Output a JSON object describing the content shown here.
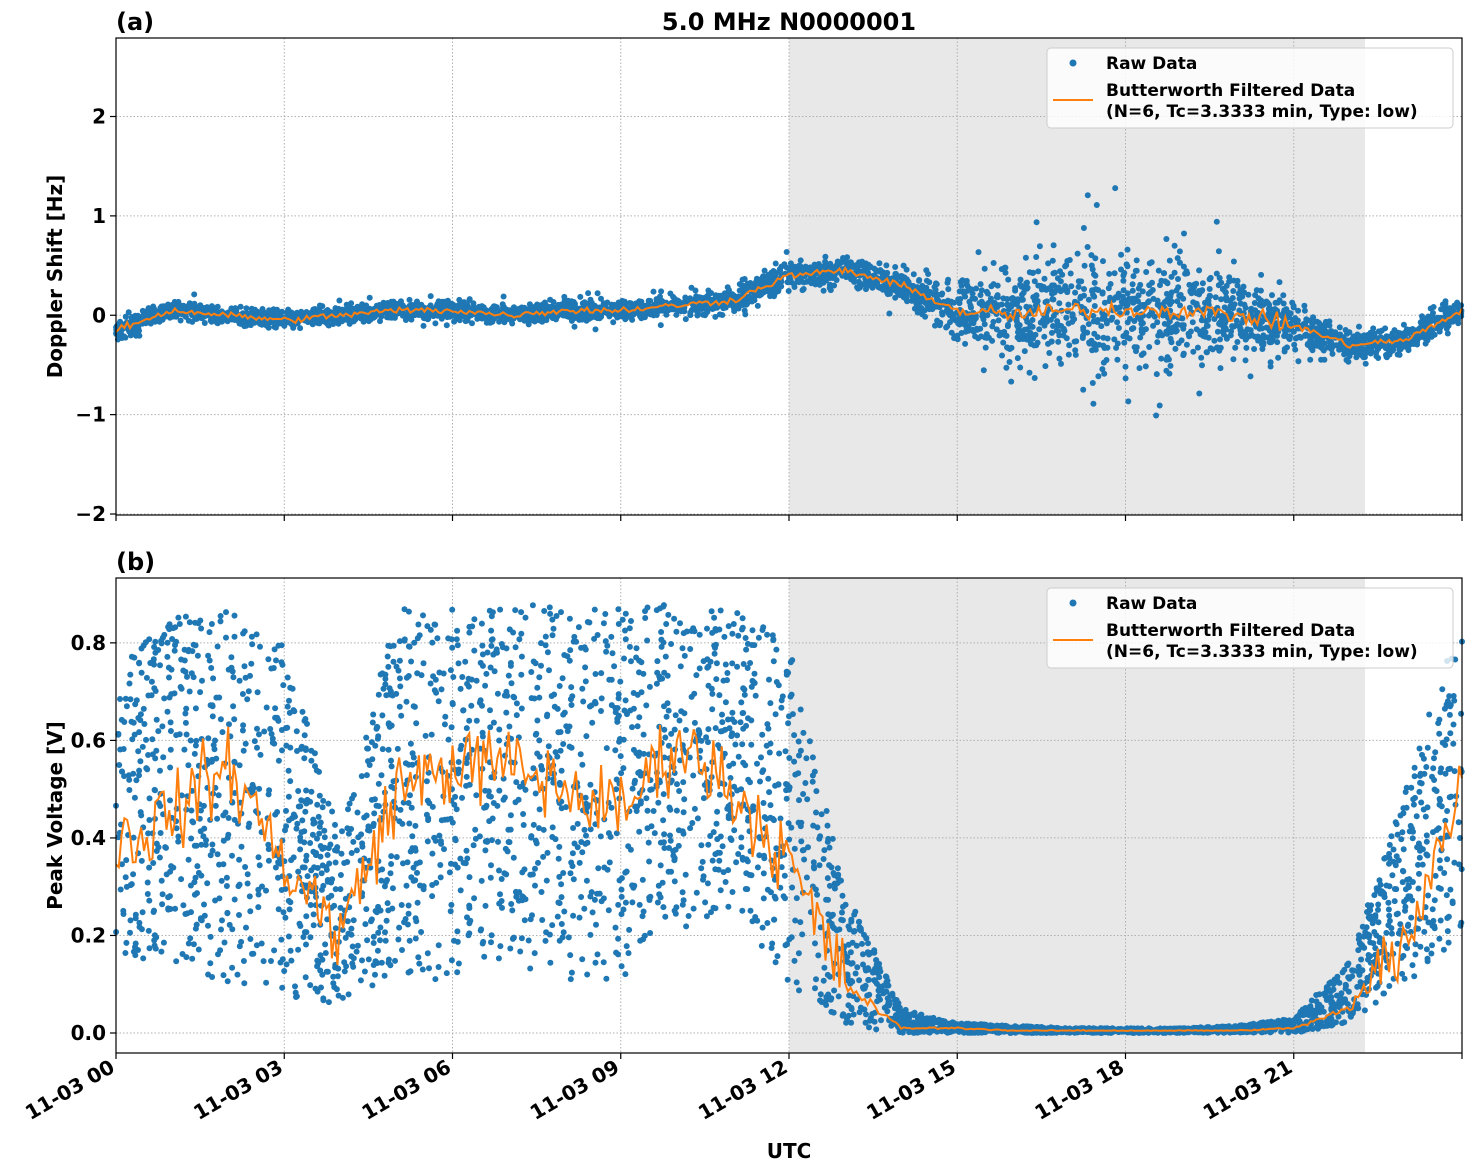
{
  "chart_data": [
    {
      "type": "scatter",
      "panel_label": "(a)",
      "title": "5.0 MHz N0000001",
      "xlabel": "",
      "ylabel": "Doppler Shift [Hz]",
      "xlim_hours": [
        0,
        24
      ],
      "ylim": [
        -2.01,
        2.79
      ],
      "yticks": [
        -2,
        -1,
        0,
        1,
        2
      ],
      "ytick_labels": [
        "−2",
        "−1",
        "0",
        "1",
        "2"
      ],
      "grid": true,
      "legend_position": "top-right",
      "shaded_region_hours": [
        12,
        22.27
      ],
      "x_hours": [
        0,
        1,
        2,
        3,
        4,
        5,
        6,
        7,
        8,
        9,
        10,
        11,
        12,
        13,
        14,
        15,
        16,
        17,
        18,
        19,
        20,
        21,
        22,
        23,
        24
      ],
      "series": [
        {
          "name": "Raw Data",
          "kind": "points",
          "color": "#1f77b4",
          "center": [
            -0.15,
            0.05,
            0.0,
            -0.05,
            0.0,
            0.05,
            0.05,
            0.0,
            0.05,
            0.05,
            0.1,
            0.15,
            0.4,
            0.45,
            0.3,
            0.05,
            0.0,
            0.05,
            0.05,
            0.05,
            0.0,
            -0.1,
            -0.3,
            -0.25,
            0.05
          ],
          "spread": [
            0.25,
            0.2,
            0.2,
            0.2,
            0.2,
            0.2,
            0.2,
            0.2,
            0.22,
            0.2,
            0.25,
            0.25,
            0.3,
            0.3,
            0.35,
            0.6,
            1.1,
            1.3,
            1.4,
            1.3,
            1.0,
            0.5,
            0.35,
            0.35,
            0.3
          ]
        },
        {
          "name": "Butterworth Filtered Data",
          "name_line2": "(N=6, Tc=3.3333 min, Type: low)",
          "kind": "line",
          "color": "#ff7f0e",
          "values": [
            -0.15,
            0.05,
            0.0,
            -0.05,
            0.0,
            0.05,
            0.05,
            0.0,
            0.05,
            0.05,
            0.1,
            0.15,
            0.4,
            0.45,
            0.3,
            0.05,
            0.0,
            0.05,
            0.05,
            0.05,
            0.0,
            -0.1,
            -0.3,
            -0.25,
            0.05
          ]
        }
      ]
    },
    {
      "type": "scatter",
      "panel_label": "(b)",
      "xlabel": "UTC",
      "ylabel": "Peak Voltage [V]",
      "xlim_hours": [
        0,
        24
      ],
      "ylim": [
        -0.041,
        0.933
      ],
      "yticks": [
        0.0,
        0.2,
        0.4,
        0.6,
        0.8
      ],
      "ytick_labels": [
        "0.0",
        "0.2",
        "0.4",
        "0.6",
        "0.8"
      ],
      "xtick_labels": [
        "11-03 00",
        "11-03 03",
        "11-03 06",
        "11-03 09",
        "11-03 12",
        "11-03 15",
        "11-03 18",
        "11-03 21"
      ],
      "xtick_hours": [
        0,
        3,
        6,
        9,
        12,
        15,
        18,
        21
      ],
      "grid": true,
      "legend_position": "top-right",
      "shaded_region_hours": [
        12,
        22.27
      ],
      "x_hours": [
        0,
        1,
        2,
        3,
        4,
        5,
        6,
        7,
        8,
        9,
        10,
        11,
        12,
        13,
        14,
        15,
        16,
        17,
        18,
        19,
        20,
        21,
        22,
        23,
        24
      ],
      "series": [
        {
          "name": "Raw Data",
          "kind": "points",
          "color": "#1f77b4",
          "low": [
            0.15,
            0.15,
            0.1,
            0.08,
            0.05,
            0.12,
            0.1,
            0.15,
            0.1,
            0.1,
            0.2,
            0.25,
            0.1,
            0.01,
            0.0,
            0.0,
            0.0,
            0.0,
            0.0,
            0.0,
            0.0,
            0.0,
            0.02,
            0.1,
            0.2
          ],
          "high": [
            0.75,
            0.85,
            0.87,
            0.8,
            0.4,
            0.87,
            0.87,
            0.88,
            0.88,
            0.88,
            0.88,
            0.87,
            0.8,
            0.3,
            0.05,
            0.02,
            0.015,
            0.01,
            0.01,
            0.01,
            0.015,
            0.03,
            0.15,
            0.5,
            0.87
          ]
        },
        {
          "name": "Butterworth Filtered Data",
          "name_line2": "(N=6, Tc=3.3333 min, Type: low)",
          "kind": "line",
          "color": "#ff7f0e",
          "values": [
            0.38,
            0.45,
            0.55,
            0.35,
            0.2,
            0.5,
            0.55,
            0.55,
            0.5,
            0.45,
            0.6,
            0.5,
            0.35,
            0.1,
            0.01,
            0.01,
            0.005,
            0.005,
            0.005,
            0.005,
            0.005,
            0.01,
            0.05,
            0.2,
            0.5
          ]
        }
      ]
    }
  ]
}
